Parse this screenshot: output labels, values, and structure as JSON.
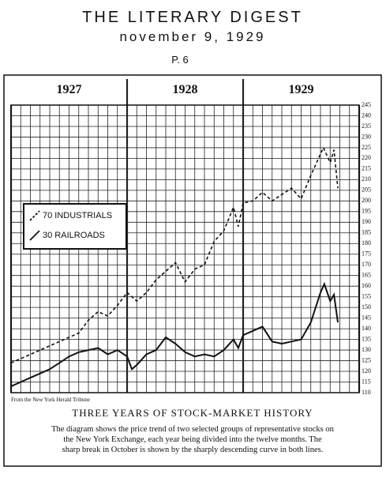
{
  "masthead": "THE LITERARY DIGEST",
  "date": "november 9, 1929",
  "page": "P. 6",
  "chart_data": {
    "type": "line",
    "title": "THREE YEARS OF STOCK-MARKET HISTORY",
    "source": "From the New York Herald Tribune",
    "caption": [
      "The diagram shows the price trend of two selected groups of representative stocks on",
      "the New York Exchange, each year being divided into the twelve months. The",
      "sharp break in October is shown by the sharply descending curve in both lines."
    ],
    "years": [
      "1927",
      "1928",
      "1929"
    ],
    "xlim": [
      0,
      36
    ],
    "ylim": [
      110,
      245
    ],
    "yticks": [
      110,
      115,
      120,
      125,
      130,
      135,
      140,
      145,
      150,
      155,
      160,
      165,
      170,
      175,
      180,
      185,
      190,
      195,
      200,
      205,
      210,
      215,
      220,
      225,
      230,
      235,
      240,
      245
    ],
    "grid": true,
    "legend": "left",
    "series": [
      {
        "name": "70 INDUSTRIALS",
        "color": "#111111",
        "dash": true,
        "x": [
          0,
          1,
          2,
          3,
          4,
          5,
          6,
          7,
          8,
          9,
          10,
          11,
          12,
          13,
          14,
          15,
          16,
          17,
          18,
          19,
          20,
          21,
          22,
          23,
          23.5,
          24,
          25,
          26,
          27,
          28,
          29,
          30,
          31,
          31.5,
          32,
          32.3,
          33,
          33.4,
          33.8
        ],
        "values": [
          124,
          126,
          128,
          130,
          132,
          134,
          136,
          138,
          144,
          148,
          146,
          151,
          157,
          153,
          157,
          163,
          167,
          171,
          162,
          168,
          170,
          181,
          186,
          197,
          188,
          199,
          200,
          204,
          200,
          203,
          206,
          201,
          212,
          217,
          222,
          225,
          218,
          224,
          206
        ]
      },
      {
        "name": "30 RAILROADS",
        "color": "#111111",
        "dash": false,
        "x": [
          0,
          1,
          2,
          3,
          4,
          5,
          6,
          7,
          8,
          9,
          10,
          11,
          12,
          12.5,
          13,
          14,
          15,
          16,
          17,
          18,
          19,
          20,
          21,
          22,
          23,
          23.5,
          24,
          25,
          26,
          27,
          28,
          29,
          30,
          31,
          31.5,
          32,
          32.4,
          33,
          33.4,
          33.8
        ],
        "values": [
          113,
          115,
          117,
          119,
          121,
          124,
          127,
          129,
          130,
          131,
          128,
          130,
          127,
          121,
          123,
          128,
          130,
          136,
          133,
          129,
          127,
          128,
          127,
          130,
          135,
          131,
          137,
          139,
          141,
          134,
          133,
          134,
          135,
          143,
          150,
          157,
          161,
          153,
          156,
          143
        ]
      }
    ]
  }
}
